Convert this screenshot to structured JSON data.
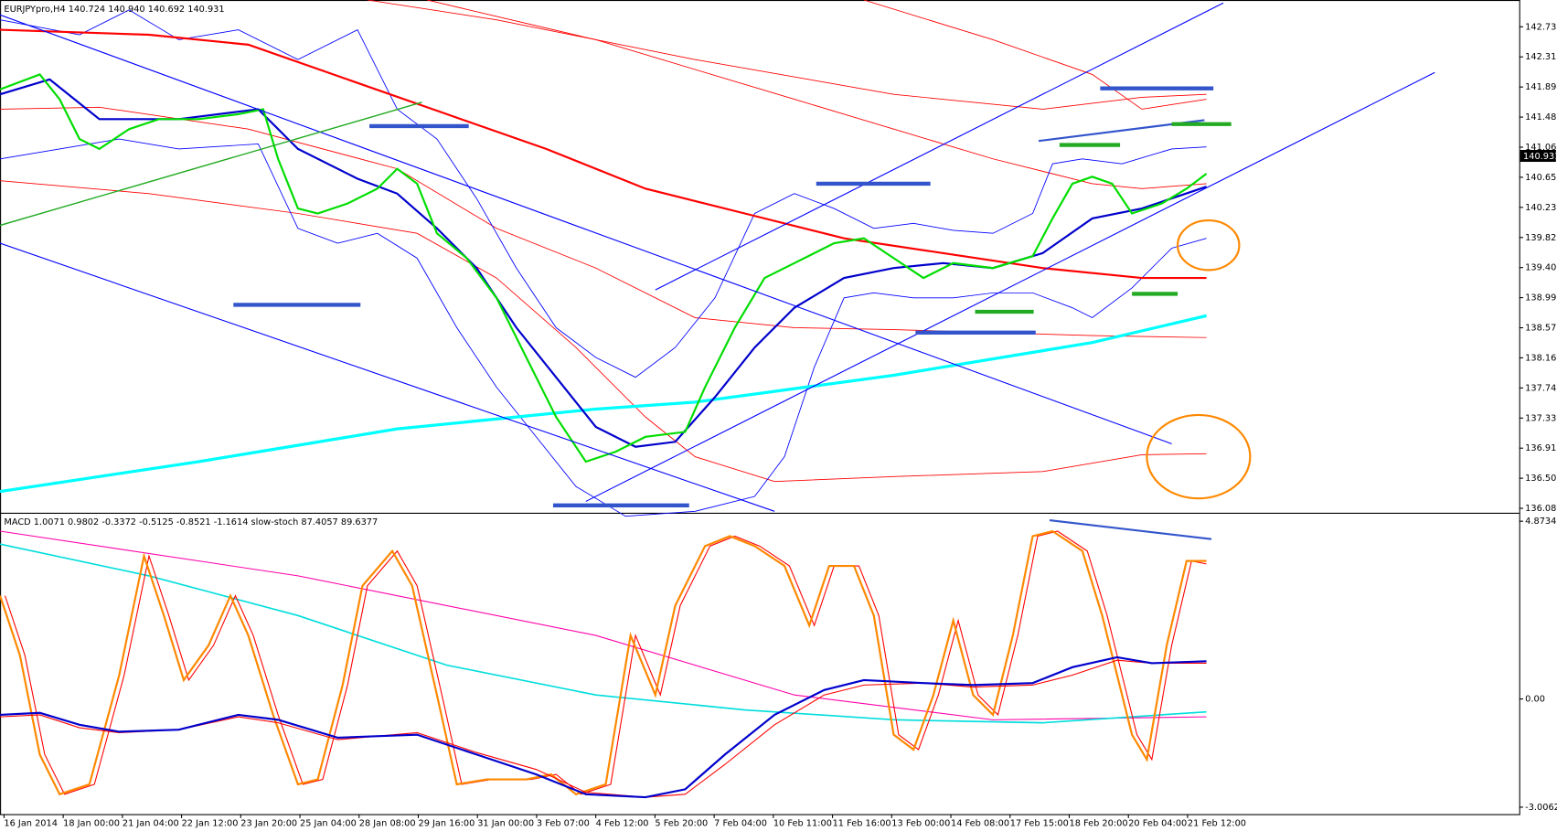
{
  "header": {
    "title": "EURJPYpro,H4 140.724 140.940 140.692 140.931"
  },
  "price_axis": {
    "ticks": [
      "142.730",
      "142.310",
      "141.890",
      "141.480",
      "141.060",
      "140.650",
      "140.230",
      "139.820",
      "139.400",
      "138.990",
      "138.570",
      "138.160",
      "137.740",
      "137.330",
      "136.910",
      "136.500",
      "136.080"
    ],
    "current": "140.931"
  },
  "indicator": {
    "title": "MACD 1.0071 0.9802 -0.3372 -0.5125 -0.8521 -1.1614  slow-stoch 87.4057 89.6377",
    "ticks": [
      "4.8734",
      "0.00",
      "-3.0062"
    ]
  },
  "time_axis": {
    "labels": [
      "16 Jan 2014",
      "18 Jan 00:00",
      "21 Jan 04:00",
      "22 Jan 12:00",
      "23 Jan 20:00",
      "25 Jan 04:00",
      "28 Jan 08:00",
      "29 Jan 16:00",
      "31 Jan 00:00",
      "3 Feb 07:00",
      "4 Feb 12:00",
      "5 Feb 20:00",
      "7 Feb 04:00",
      "10 Feb 11:00",
      "11 Feb 16:00",
      "13 Feb 00:00",
      "14 Feb 08:00",
      "17 Feb 15:00",
      "18 Feb 20:00",
      "20 Feb 04:00",
      "21 Feb 12:00"
    ]
  }
}
